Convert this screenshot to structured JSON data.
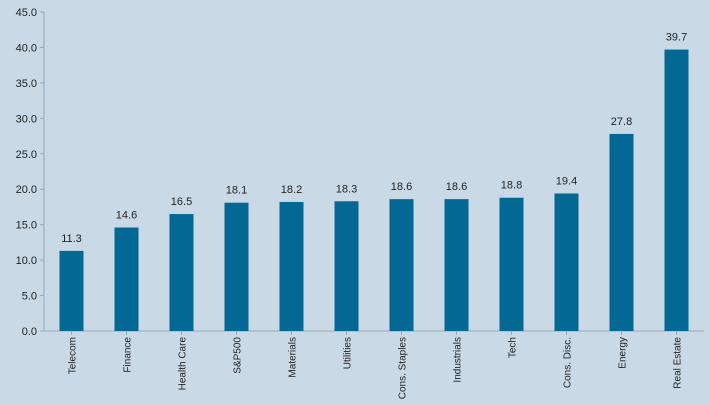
{
  "colors": {
    "background": "#c9d9e6",
    "bar": "#046895",
    "axis": "#9aa9b5",
    "text": "#222222"
  },
  "chart_data": {
    "type": "bar",
    "title": "",
    "xlabel": "",
    "ylabel": "",
    "ylim": [
      0,
      45
    ],
    "yticks": [
      "0.0",
      "5.0",
      "10.0",
      "15.0",
      "20.0",
      "25.0",
      "30.0",
      "35.0",
      "40.0",
      "45.0"
    ],
    "grid": false,
    "categories": [
      "Telecom",
      "Finance",
      "Health Care",
      "S&P500",
      "Materials",
      "Utilities",
      "Cons. Staples",
      "Industrials",
      "Tech",
      "Cons. Disc.",
      "Energy",
      "Real Estate"
    ],
    "values": [
      11.3,
      14.6,
      16.5,
      18.1,
      18.2,
      18.3,
      18.6,
      18.6,
      18.8,
      19.4,
      27.8,
      39.7
    ],
    "data_labels": [
      "11.3",
      "14.6",
      "16.5",
      "18.1",
      "18.2",
      "18.3",
      "18.6",
      "18.6",
      "18.8",
      "19.4",
      "27.8",
      "39.7"
    ]
  }
}
